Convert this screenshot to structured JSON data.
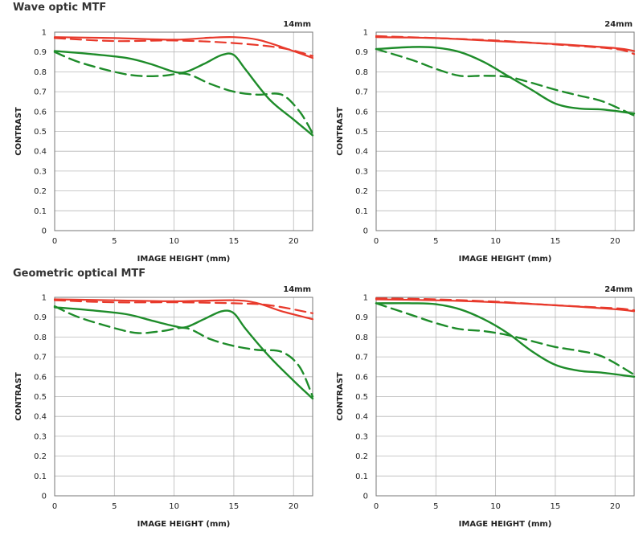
{
  "sections": [
    {
      "title": "Wave optic MTF"
    },
    {
      "title": "Geometric optical MTF"
    }
  ],
  "colors": {
    "red": "#e8392b",
    "green": "#1e8c2a",
    "grid": "#b8b8b8",
    "frame": "#777777"
  },
  "chart_data": [
    {
      "type": "line",
      "section": "Wave optic MTF",
      "focal": "14mm",
      "xlabel": "IMAGE HEIGHT (mm)",
      "ylabel": "CONTRAST",
      "xlim": [
        0,
        21.6
      ],
      "ylim": [
        0,
        1
      ],
      "xticks": [
        0,
        5,
        10,
        15,
        20
      ],
      "yticks": [
        "0",
        "0.1",
        "0.2",
        "0.3",
        "0.4",
        "0.5",
        "0.6",
        "0.7",
        "0.8",
        "0.9",
        "1"
      ],
      "grid": true,
      "series": [
        {
          "color": "red",
          "dash": false,
          "x": [
            0,
            5,
            10,
            13,
            15,
            17,
            19,
            21.6
          ],
          "y": [
            0.975,
            0.97,
            0.962,
            0.972,
            0.975,
            0.962,
            0.925,
            0.87
          ]
        },
        {
          "color": "red",
          "dash": true,
          "x": [
            0,
            5,
            10,
            15,
            19,
            21.6
          ],
          "y": [
            0.97,
            0.955,
            0.958,
            0.945,
            0.92,
            0.88
          ]
        },
        {
          "color": "green",
          "dash": false,
          "x": [
            0,
            3,
            6,
            8,
            10,
            11,
            12.5,
            14,
            15,
            16,
            18,
            20,
            21.6
          ],
          "y": [
            0.905,
            0.89,
            0.87,
            0.84,
            0.8,
            0.8,
            0.84,
            0.885,
            0.885,
            0.81,
            0.66,
            0.56,
            0.48
          ]
        },
        {
          "color": "green",
          "dash": true,
          "x": [
            0,
            2,
            5,
            7,
            9,
            11,
            13,
            15,
            17,
            19,
            20.5,
            21.6
          ],
          "y": [
            0.9,
            0.85,
            0.8,
            0.78,
            0.78,
            0.79,
            0.74,
            0.7,
            0.685,
            0.685,
            0.6,
            0.49
          ]
        }
      ]
    },
    {
      "type": "line",
      "section": "Wave optic MTF",
      "focal": "24mm",
      "xlabel": "IMAGE HEIGHT (mm)",
      "ylabel": "CONTRAST",
      "xlim": [
        0,
        21.6
      ],
      "ylim": [
        0,
        1
      ],
      "xticks": [
        0,
        5,
        10,
        15,
        20
      ],
      "yticks": [
        "0",
        "0.1",
        "0.2",
        "0.3",
        "0.4",
        "0.5",
        "0.6",
        "0.7",
        "0.8",
        "0.9",
        "1"
      ],
      "grid": true,
      "series": [
        {
          "color": "red",
          "dash": false,
          "x": [
            0,
            5,
            10,
            15,
            20,
            21.6
          ],
          "y": [
            0.975,
            0.97,
            0.955,
            0.94,
            0.92,
            0.905
          ]
        },
        {
          "color": "red",
          "dash": true,
          "x": [
            0,
            5,
            10,
            15,
            20,
            21.6
          ],
          "y": [
            0.98,
            0.97,
            0.958,
            0.938,
            0.915,
            0.89
          ]
        },
        {
          "color": "green",
          "dash": false,
          "x": [
            0,
            3,
            5,
            7,
            9,
            11,
            13,
            15,
            17,
            19,
            21.6
          ],
          "y": [
            0.915,
            0.925,
            0.922,
            0.9,
            0.85,
            0.78,
            0.71,
            0.64,
            0.615,
            0.61,
            0.59
          ]
        },
        {
          "color": "green",
          "dash": true,
          "x": [
            0,
            3,
            5,
            7,
            9,
            11,
            13,
            15,
            17,
            19,
            21.6
          ],
          "y": [
            0.915,
            0.86,
            0.815,
            0.78,
            0.78,
            0.775,
            0.745,
            0.71,
            0.68,
            0.65,
            0.58
          ]
        }
      ]
    },
    {
      "type": "line",
      "section": "Geometric optical MTF",
      "focal": "14mm",
      "xlabel": "IMAGE HEIGHT (mm)",
      "ylabel": "CONTRAST",
      "xlim": [
        0,
        21.6
      ],
      "ylim": [
        0,
        1
      ],
      "xticks": [
        0,
        5,
        10,
        15,
        20
      ],
      "yticks": [
        "0",
        "0.1",
        "0.2",
        "0.3",
        "0.4",
        "0.5",
        "0.6",
        "0.7",
        "0.8",
        "0.9",
        "1"
      ],
      "grid": true,
      "series": [
        {
          "color": "red",
          "dash": false,
          "x": [
            0,
            5,
            10,
            15,
            17,
            19,
            21.6
          ],
          "y": [
            0.99,
            0.985,
            0.98,
            0.985,
            0.97,
            0.93,
            0.89
          ]
        },
        {
          "color": "red",
          "dash": true,
          "x": [
            0,
            5,
            10,
            15,
            18,
            21.6
          ],
          "y": [
            0.985,
            0.975,
            0.975,
            0.97,
            0.96,
            0.92
          ]
        },
        {
          "color": "green",
          "dash": false,
          "x": [
            0,
            3,
            6,
            8,
            10,
            11,
            12.5,
            14,
            15,
            16,
            18,
            20,
            21.6
          ],
          "y": [
            0.95,
            0.935,
            0.915,
            0.885,
            0.855,
            0.85,
            0.89,
            0.93,
            0.92,
            0.84,
            0.7,
            0.58,
            0.49
          ]
        },
        {
          "color": "green",
          "dash": true,
          "x": [
            0,
            2,
            5,
            7,
            9,
            11,
            13,
            15,
            17,
            19,
            20.5,
            21.6
          ],
          "y": [
            0.955,
            0.9,
            0.845,
            0.82,
            0.83,
            0.845,
            0.79,
            0.755,
            0.735,
            0.725,
            0.65,
            0.5
          ]
        }
      ]
    },
    {
      "type": "line",
      "section": "Geometric optical MTF",
      "focal": "24mm",
      "xlabel": "IMAGE HEIGHT (mm)",
      "ylabel": "CONTRAST",
      "xlim": [
        0,
        21.6
      ],
      "ylim": [
        0,
        1
      ],
      "xticks": [
        0,
        5,
        10,
        15,
        20
      ],
      "yticks": [
        "0",
        "0.1",
        "0.2",
        "0.3",
        "0.4",
        "0.5",
        "0.6",
        "0.7",
        "0.8",
        "0.9",
        "1"
      ],
      "grid": true,
      "series": [
        {
          "color": "red",
          "dash": false,
          "x": [
            0,
            5,
            10,
            15,
            20,
            21.6
          ],
          "y": [
            0.99,
            0.985,
            0.975,
            0.96,
            0.94,
            0.93
          ]
        },
        {
          "color": "red",
          "dash": true,
          "x": [
            0,
            5,
            10,
            15,
            20,
            21.6
          ],
          "y": [
            0.995,
            0.99,
            0.978,
            0.96,
            0.945,
            0.935
          ]
        },
        {
          "color": "green",
          "dash": false,
          "x": [
            0,
            3,
            5,
            7,
            9,
            11,
            13,
            15,
            17,
            19,
            21.6
          ],
          "y": [
            0.97,
            0.97,
            0.965,
            0.94,
            0.89,
            0.82,
            0.73,
            0.66,
            0.63,
            0.62,
            0.6
          ]
        },
        {
          "color": "green",
          "dash": true,
          "x": [
            0,
            3,
            5,
            7,
            9,
            11,
            13,
            15,
            17,
            19,
            21.6
          ],
          "y": [
            0.97,
            0.91,
            0.87,
            0.84,
            0.83,
            0.81,
            0.78,
            0.75,
            0.73,
            0.7,
            0.61
          ]
        }
      ]
    }
  ]
}
